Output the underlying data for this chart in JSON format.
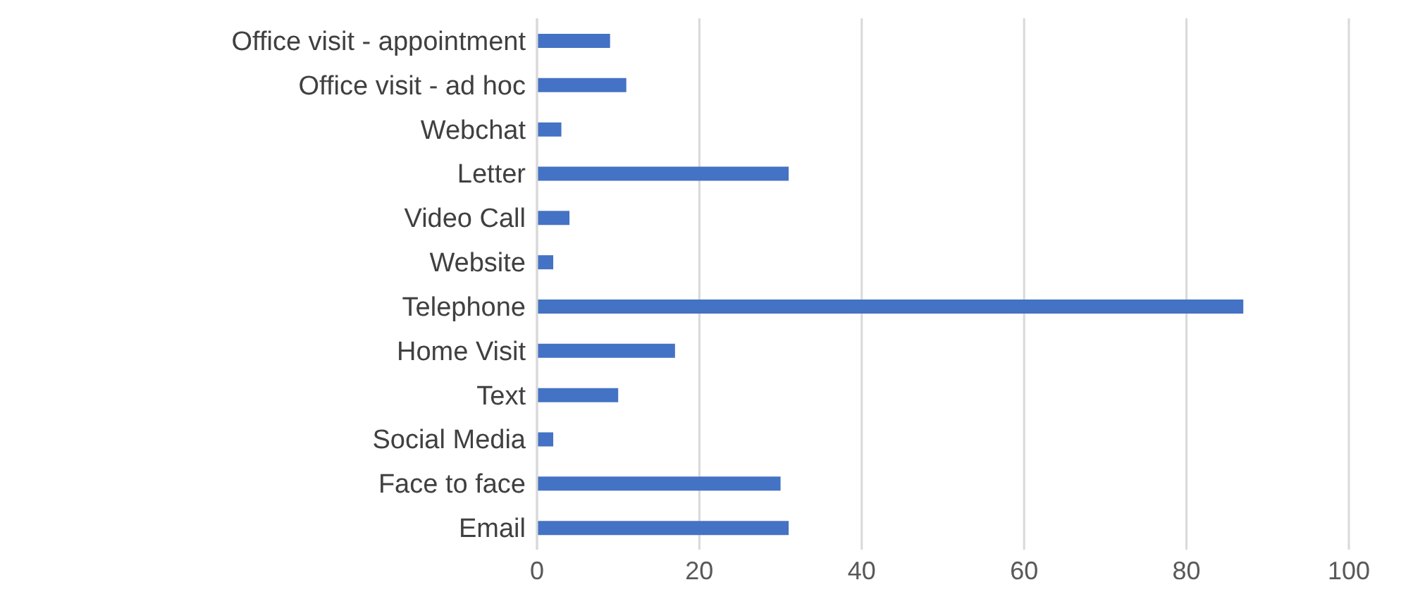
{
  "chart_data": {
    "type": "bar",
    "orientation": "horizontal",
    "categories": [
      "Office visit - appointment",
      "Office visit - ad hoc",
      "Webchat",
      "Letter",
      "Video Call",
      "Website",
      "Telephone",
      "Home Visit",
      "Text",
      "Social Media",
      "Face to face",
      "Email"
    ],
    "values": [
      9,
      11,
      3,
      31,
      4,
      2,
      87,
      17,
      10,
      2,
      30,
      31
    ],
    "color": "#4472c4",
    "xlim": [
      0,
      100
    ],
    "xticks": [
      0,
      20,
      40,
      60,
      80,
      100
    ],
    "grid": "x"
  }
}
